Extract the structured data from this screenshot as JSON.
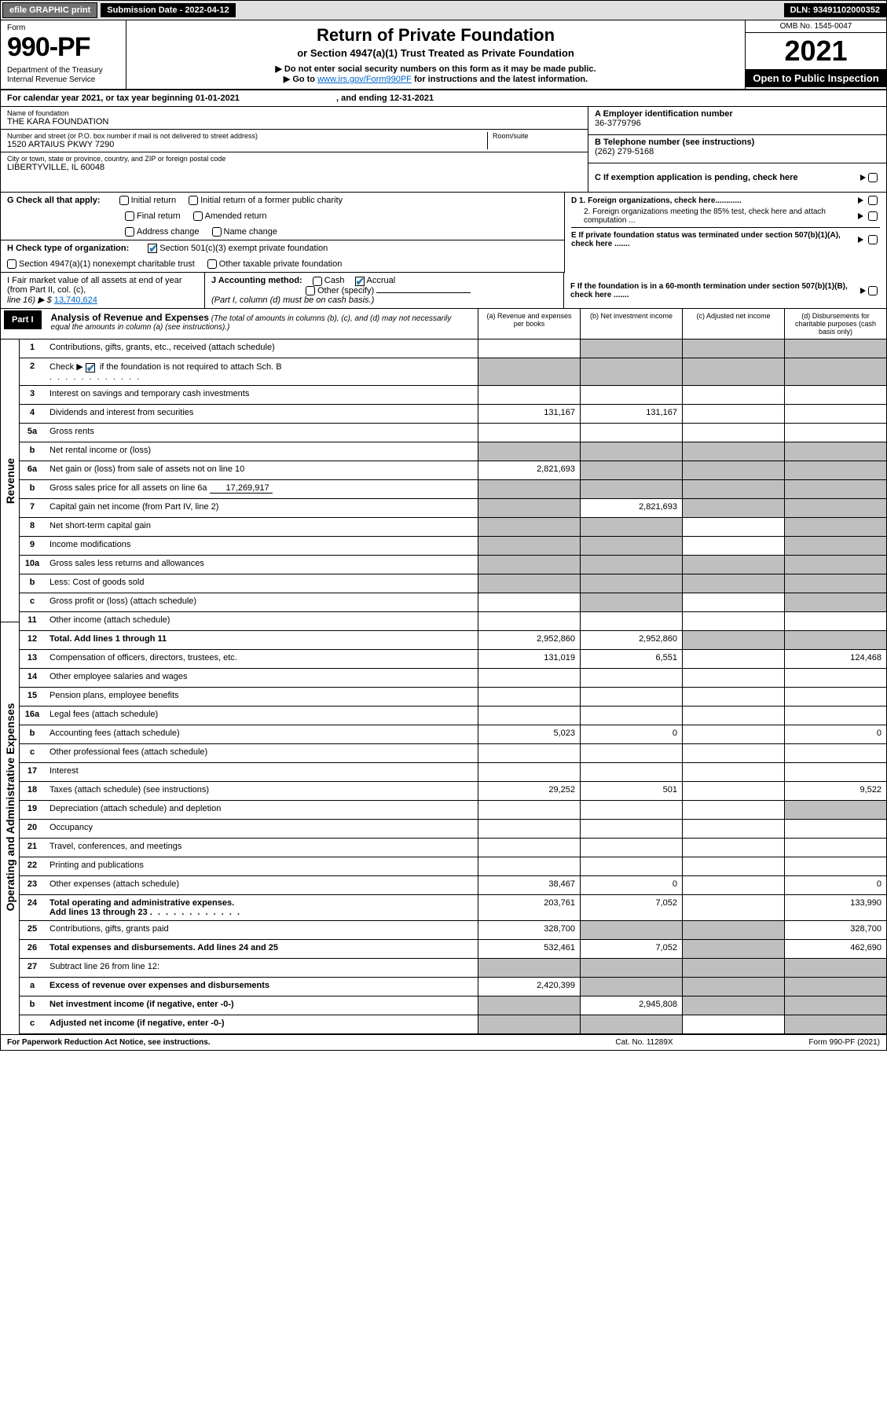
{
  "topbar": {
    "efile": "efile GRAPHIC print",
    "submission": "Submission Date - 2022-04-12",
    "dln": "DLN: 93491102000352"
  },
  "header": {
    "form_word": "Form",
    "form_num": "990-PF",
    "dept": "Department of the Treasury\nInternal Revenue Service",
    "title": "Return of Private Foundation",
    "subtitle": "or Section 4947(a)(1) Trust Treated as Private Foundation",
    "note1": "▶ Do not enter social security numbers on this form as it may be made public.",
    "note2_pre": "▶ Go to ",
    "note2_link": "www.irs.gov/Form990PF",
    "note2_post": " for instructions and the latest information.",
    "omb": "OMB No. 1545-0047",
    "year": "2021",
    "open": "Open to Public Inspection"
  },
  "calendar": {
    "text_a": "For calendar year 2021, or tax year beginning ",
    "begin": "01-01-2021",
    "text_b": " , and ending ",
    "end": "12-31-2021"
  },
  "id": {
    "name_lbl": "Name of foundation",
    "name": "THE KARA FOUNDATION",
    "addr_lbl": "Number and street (or P.O. box number if mail is not delivered to street address)",
    "addr": "1520 ARTAIUS PKWY 7290",
    "room_lbl": "Room/suite",
    "city_lbl": "City or town, state or province, country, and ZIP or foreign postal code",
    "city": "LIBERTYVILLE, IL  60048",
    "A_lbl": "A Employer identification number",
    "A_val": "36-3779796",
    "B_lbl": "B Telephone number (see instructions)",
    "B_val": "(262) 279-5168",
    "C_lbl": "C If exemption application is pending, check here"
  },
  "G": {
    "lead": "G Check all that apply:",
    "o1": "Initial return",
    "o2": "Initial return of a former public charity",
    "o3": "Final return",
    "o4": "Amended return",
    "o5": "Address change",
    "o6": "Name change"
  },
  "D": {
    "d1": "D 1. Foreign organizations, check here............",
    "d2": "2. Foreign organizations meeting the 85% test, check here and attach computation ...",
    "E": "E  If private foundation status was terminated under section 507(b)(1)(A), check here .......",
    "F": "F  If the foundation is in a 60-month termination under section 507(b)(1)(B), check here ......."
  },
  "H": {
    "lead": "H Check type of organization:",
    "o1": "Section 501(c)(3) exempt private foundation",
    "o2": "Section 4947(a)(1) nonexempt charitable trust",
    "o3": "Other taxable private foundation"
  },
  "I": {
    "lead": "I Fair market value of all assets at end of year (from Part II, col. (c),",
    "line": "line 16) ▶ $ ",
    "val": "13,740,624"
  },
  "J": {
    "lead": "J Accounting method:",
    "cash": "Cash",
    "accrual": "Accrual",
    "other": "Other (specify)",
    "note": "(Part I, column (d) must be on cash basis.)"
  },
  "part1": {
    "label": "Part I",
    "title": "Analysis of Revenue and Expenses",
    "desc": " (The total of amounts in columns (b), (c), and (d) may not necessarily equal the amounts in column (a) (see instructions).)",
    "colA": "(a)   Revenue and expenses per books",
    "colB": "(b)   Net investment income",
    "colC": "(c)   Adjusted net income",
    "colD": "(d)   Disbursements for charitable purposes (cash basis only)"
  },
  "side": {
    "rev": "Revenue",
    "exp": "Operating and Administrative Expenses"
  },
  "rows": {
    "r1": {
      "n": "1",
      "t": "Contributions, gifts, grants, etc., received (attach schedule)"
    },
    "r2": {
      "n": "2",
      "t": "Check ▶ ",
      "t2": " if the foundation is not required to attach Sch. B"
    },
    "r3": {
      "n": "3",
      "t": "Interest on savings and temporary cash investments"
    },
    "r4": {
      "n": "4",
      "t": "Dividends and interest from securities",
      "a": "131,167",
      "b": "131,167"
    },
    "r5a": {
      "n": "5a",
      "t": "Gross rents"
    },
    "r5b": {
      "n": "b",
      "t": "Net rental income or (loss)"
    },
    "r6a": {
      "n": "6a",
      "t": "Net gain or (loss) from sale of assets not on line 10",
      "a": "2,821,693"
    },
    "r6b": {
      "n": "b",
      "t": "Gross sales price for all assets on line 6a",
      "sub": "17,269,917"
    },
    "r7": {
      "n": "7",
      "t": "Capital gain net income (from Part IV, line 2)",
      "b": "2,821,693"
    },
    "r8": {
      "n": "8",
      "t": "Net short-term capital gain"
    },
    "r9": {
      "n": "9",
      "t": "Income modifications"
    },
    "r10a": {
      "n": "10a",
      "t": "Gross sales less returns and allowances"
    },
    "r10b": {
      "n": "b",
      "t": "Less: Cost of goods sold"
    },
    "r10c": {
      "n": "c",
      "t": "Gross profit or (loss) (attach schedule)"
    },
    "r11": {
      "n": "11",
      "t": "Other income (attach schedule)"
    },
    "r12": {
      "n": "12",
      "t": "Total. Add lines 1 through 11",
      "a": "2,952,860",
      "b": "2,952,860"
    },
    "r13": {
      "n": "13",
      "t": "Compensation of officers, directors, trustees, etc.",
      "a": "131,019",
      "b": "6,551",
      "d": "124,468"
    },
    "r14": {
      "n": "14",
      "t": "Other employee salaries and wages"
    },
    "r15": {
      "n": "15",
      "t": "Pension plans, employee benefits"
    },
    "r16a": {
      "n": "16a",
      "t": "Legal fees (attach schedule)"
    },
    "r16b": {
      "n": "b",
      "t": "Accounting fees (attach schedule)",
      "a": "5,023",
      "b": "0",
      "d": "0"
    },
    "r16c": {
      "n": "c",
      "t": "Other professional fees (attach schedule)"
    },
    "r17": {
      "n": "17",
      "t": "Interest"
    },
    "r18": {
      "n": "18",
      "t": "Taxes (attach schedule) (see instructions)",
      "a": "29,252",
      "b": "501",
      "d": "9,522"
    },
    "r19": {
      "n": "19",
      "t": "Depreciation (attach schedule) and depletion"
    },
    "r20": {
      "n": "20",
      "t": "Occupancy"
    },
    "r21": {
      "n": "21",
      "t": "Travel, conferences, and meetings"
    },
    "r22": {
      "n": "22",
      "t": "Printing and publications"
    },
    "r23": {
      "n": "23",
      "t": "Other expenses (attach schedule)",
      "a": "38,467",
      "b": "0",
      "d": "0"
    },
    "r24": {
      "n": "24",
      "t": "Total operating and administrative expenses.",
      "t2": "Add lines 13 through 23",
      "a": "203,761",
      "b": "7,052",
      "d": "133,990"
    },
    "r25": {
      "n": "25",
      "t": "Contributions, gifts, grants paid",
      "a": "328,700",
      "d": "328,700"
    },
    "r26": {
      "n": "26",
      "t": "Total expenses and disbursements. Add lines 24 and 25",
      "a": "532,461",
      "b": "7,052",
      "d": "462,690"
    },
    "r27": {
      "n": "27",
      "t": "Subtract line 26 from line 12:"
    },
    "r27a": {
      "n": "a",
      "t": "Excess of revenue over expenses and disbursements",
      "a": "2,420,399"
    },
    "r27b": {
      "n": "b",
      "t": "Net investment income (if negative, enter -0-)",
      "b": "2,945,808"
    },
    "r27c": {
      "n": "c",
      "t": "Adjusted net income (if negative, enter -0-)"
    }
  },
  "footer": {
    "left": "For Paperwork Reduction Act Notice, see instructions.",
    "mid": "Cat. No. 11289X",
    "right": "Form 990-PF (2021)"
  },
  "colors": {
    "link": "#0066cc",
    "check": "#2a7ab0",
    "grey": "#bfbfbf",
    "black": "#000000"
  }
}
